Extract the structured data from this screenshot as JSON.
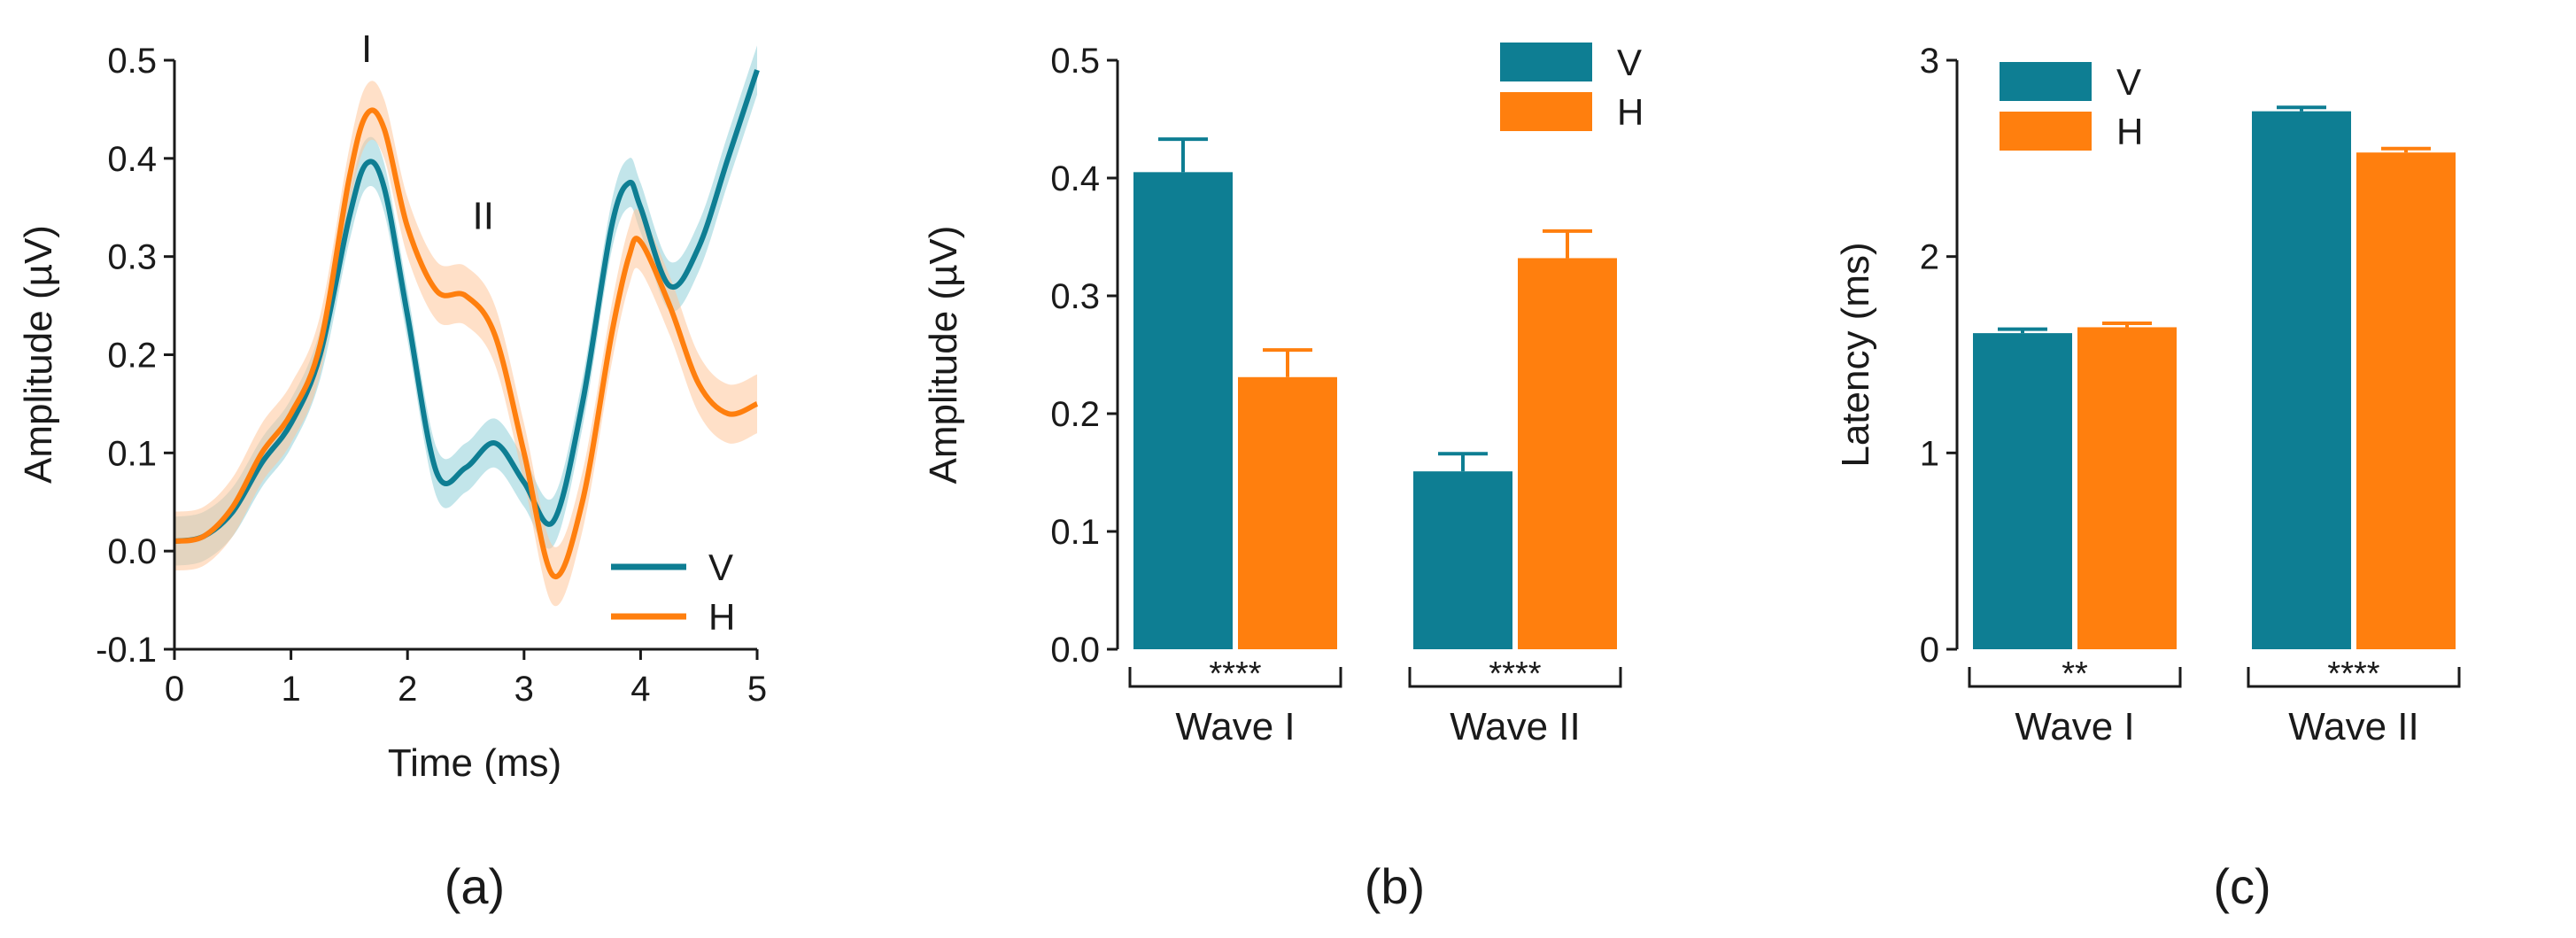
{
  "colors": {
    "V": "#0e7e93",
    "H": "#ff7f0e",
    "V_band": "#8fd0d8",
    "H_band": "#ffc69a",
    "axis": "#1a1a1a"
  },
  "chart_data": [
    {
      "type": "line",
      "panel_label": "(a)",
      "xlabel": "Time (ms)",
      "ylabel": "Amplitude (µV)",
      "xlim": [
        0,
        5
      ],
      "ylim": [
        -0.1,
        0.5
      ],
      "xticks": [
        "0",
        "1",
        "2",
        "3",
        "4",
        "5"
      ],
      "yticks": [
        "-0.1",
        "0.0",
        "0.1",
        "0.2",
        "0.3",
        "0.4",
        "0.5"
      ],
      "annotations": [
        {
          "text": "I",
          "x": 1.65,
          "y": 0.5
        },
        {
          "text": "II",
          "x": 2.65,
          "y": 0.33
        }
      ],
      "legend_position": "bottom-right",
      "x": [
        0,
        0.25,
        0.5,
        0.75,
        1.0,
        1.25,
        1.5,
        1.65,
        1.8,
        2.0,
        2.25,
        2.5,
        2.75,
        3.0,
        3.25,
        3.5,
        3.75,
        3.9,
        4.0,
        4.25,
        4.5,
        4.75,
        5.0
      ],
      "series": [
        {
          "name": "V",
          "values": [
            0.01,
            0.015,
            0.04,
            0.09,
            0.13,
            0.2,
            0.34,
            0.395,
            0.37,
            0.24,
            0.08,
            0.085,
            0.11,
            0.07,
            0.03,
            0.15,
            0.33,
            0.375,
            0.35,
            0.27,
            0.31,
            0.4,
            0.49
          ],
          "error": 0.025
        },
        {
          "name": "H",
          "values": [
            0.01,
            0.015,
            0.045,
            0.1,
            0.14,
            0.21,
            0.38,
            0.445,
            0.43,
            0.33,
            0.265,
            0.26,
            0.22,
            0.1,
            -0.025,
            0.05,
            0.22,
            0.3,
            0.315,
            0.25,
            0.17,
            0.14,
            0.15
          ],
          "error": 0.03
        }
      ]
    },
    {
      "type": "bar",
      "panel_label": "(b)",
      "ylabel": "Amplitude (µV)",
      "ylim": [
        0,
        0.5
      ],
      "yticks": [
        "0.0",
        "0.1",
        "0.2",
        "0.3",
        "0.4",
        "0.5"
      ],
      "categories": [
        "Wave I",
        "Wave II"
      ],
      "significance": [
        "****",
        "****"
      ],
      "legend_position": "top-right",
      "series": [
        {
          "name": "V",
          "values": [
            0.405,
            0.151
          ],
          "errors": [
            0.028,
            0.015
          ]
        },
        {
          "name": "H",
          "values": [
            0.231,
            0.332
          ],
          "errors": [
            0.023,
            0.023
          ]
        }
      ]
    },
    {
      "type": "bar",
      "panel_label": "(c)",
      "ylabel": "Latency (ms)",
      "ylim": [
        0,
        3
      ],
      "yticks": [
        "0",
        "1",
        "2",
        "3"
      ],
      "categories": [
        "Wave I",
        "Wave II"
      ],
      "significance": [
        "**",
        "****"
      ],
      "legend_position": "top-left",
      "series": [
        {
          "name": "V",
          "values": [
            1.61,
            2.74
          ],
          "errors": [
            0.02,
            0.02
          ]
        },
        {
          "name": "H",
          "values": [
            1.64,
            2.53
          ],
          "errors": [
            0.02,
            0.02
          ]
        }
      ]
    }
  ]
}
